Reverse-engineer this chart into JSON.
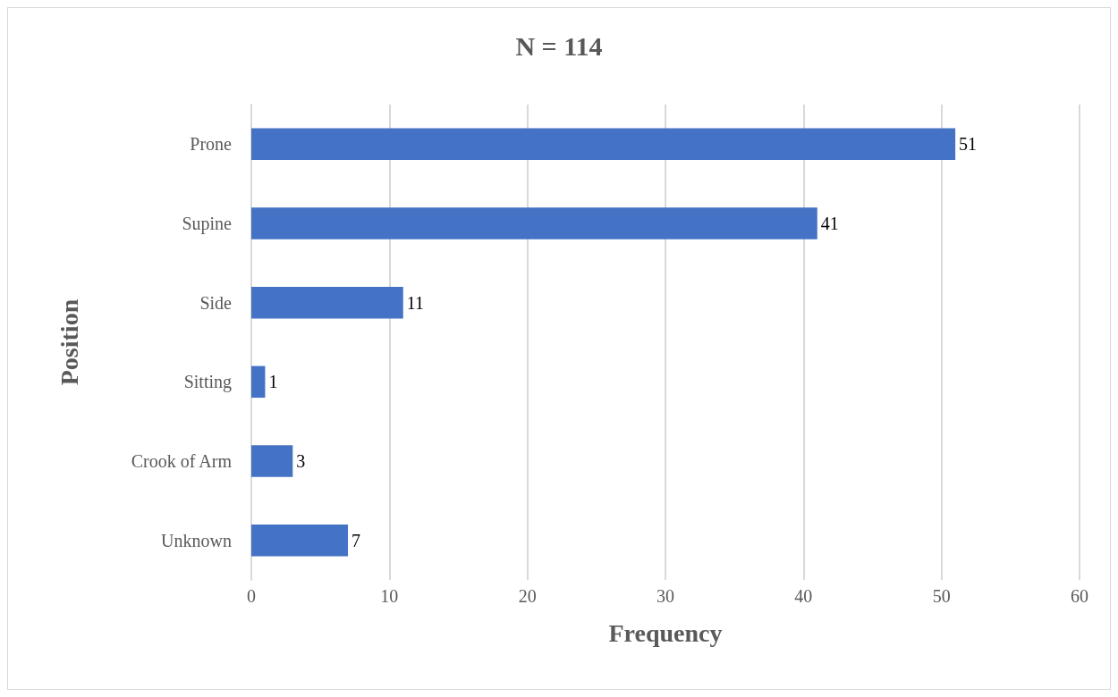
{
  "chart_data": {
    "type": "bar",
    "orientation": "horizontal",
    "title": "N = 114",
    "xlabel": "Frequency",
    "ylabel": "Position",
    "categories": [
      "Prone",
      "Supine",
      "Side",
      "Sitting",
      "Crook of Arm",
      "Unknown"
    ],
    "values": [
      51,
      41,
      11,
      1,
      3,
      7
    ],
    "color": "#4472c4",
    "xlim": [
      0,
      60
    ],
    "xticks": [
      0,
      10,
      20,
      30,
      40,
      50,
      60
    ],
    "grid": "x",
    "data_labels": true
  }
}
